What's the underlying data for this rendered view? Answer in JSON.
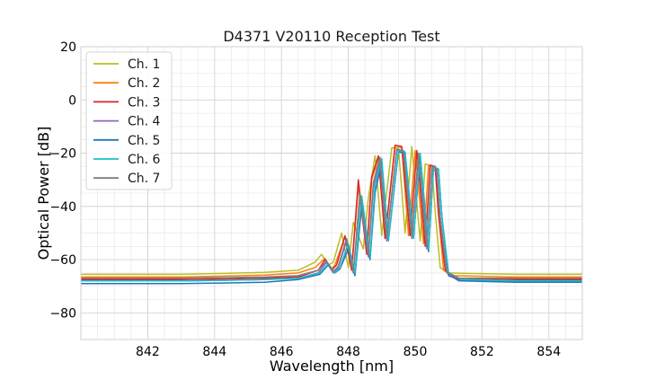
{
  "chart_data": {
    "type": "line",
    "title": "D4371 V20110 Reception Test",
    "xlabel": "Wavelength [nm]",
    "ylabel": "Optical Power [dB]",
    "xlim": [
      840,
      855
    ],
    "ylim": [
      -90,
      20
    ],
    "xticks": [
      842,
      844,
      846,
      848,
      850,
      852,
      854
    ],
    "yticks": [
      20,
      0,
      -20,
      -40,
      -60,
      -80
    ],
    "grid": true,
    "legend_position": "top-left",
    "series": [
      {
        "name": "Ch. 1",
        "color": "#bcbd22",
        "x": [
          840,
          843,
          845.5,
          846.5,
          847.0,
          847.2,
          847.4,
          847.55,
          847.8,
          848.0,
          848.15,
          848.45,
          848.6,
          848.8,
          849.0,
          849.3,
          849.5,
          849.7,
          849.9,
          850.15,
          850.3,
          850.5,
          850.6,
          850.75,
          851.0,
          853,
          855
        ],
        "y": [
          -65.5,
          -65.5,
          -64.8,
          -64,
          -61,
          -58,
          -62,
          -61,
          -50,
          -63,
          -46,
          -56,
          -37,
          -21,
          -51,
          -18,
          -18,
          -50,
          -17.5,
          -53,
          -24,
          -25,
          -42,
          -63,
          -65,
          -65.5,
          -65.5
        ]
      },
      {
        "name": "Ch. 2",
        "color": "#ff7f0e",
        "x": [
          840,
          843,
          845.5,
          846.5,
          847.0,
          847.3,
          847.5,
          847.6,
          847.9,
          848.1,
          848.3,
          848.55,
          848.7,
          848.9,
          849.1,
          849.4,
          849.6,
          849.8,
          850.0,
          850.25,
          850.4,
          850.6,
          850.7,
          850.85,
          851.1,
          853,
          855
        ],
        "y": [
          -66.5,
          -66.5,
          -65.8,
          -65,
          -63,
          -59.5,
          -63.5,
          -62,
          -51.5,
          -64,
          -33,
          -57,
          -30,
          -22,
          -52,
          -17,
          -18,
          -51,
          -19,
          -54,
          -24.5,
          -25,
          -43,
          -64,
          -66,
          -66.5,
          -66.5
        ]
      },
      {
        "name": "Ch. 3",
        "color": "#d62728",
        "x": [
          840,
          843,
          845.5,
          846.5,
          847.1,
          847.3,
          847.5,
          847.65,
          847.9,
          848.1,
          848.3,
          848.55,
          848.7,
          848.9,
          849.1,
          849.4,
          849.6,
          849.85,
          850.05,
          850.3,
          850.45,
          850.6,
          850.7,
          850.9,
          851.2,
          853,
          855
        ],
        "y": [
          -67.5,
          -67.5,
          -67,
          -66.5,
          -64,
          -60,
          -64,
          -62,
          -51,
          -64,
          -30,
          -58,
          -29,
          -21,
          -52,
          -17,
          -17.5,
          -51,
          -19,
          -55,
          -24.5,
          -25,
          -43,
          -64,
          -67,
          -67.5,
          -67.5
        ]
      },
      {
        "name": "Ch. 4",
        "color": "#9467bd",
        "x": [
          840,
          843,
          845.5,
          846.5,
          847.1,
          847.35,
          847.55,
          847.7,
          847.95,
          848.15,
          848.35,
          848.6,
          848.75,
          848.95,
          849.15,
          849.45,
          849.65,
          849.9,
          850.1,
          850.35,
          850.5,
          850.65,
          850.75,
          850.95,
          851.3,
          853,
          855
        ],
        "y": [
          -68,
          -68,
          -67.5,
          -67,
          -65,
          -61,
          -65,
          -63,
          -53,
          -65,
          -37,
          -59,
          -33,
          -23,
          -53,
          -19,
          -19.5,
          -52,
          -21,
          -56,
          -26,
          -27,
          -45,
          -65,
          -68,
          -68,
          -68
        ]
      },
      {
        "name": "Ch. 5",
        "color": "#1f77b4",
        "x": [
          840,
          843,
          845.5,
          846.5,
          847.15,
          847.4,
          847.6,
          847.75,
          848.0,
          848.2,
          848.4,
          848.65,
          848.8,
          849.0,
          849.2,
          849.5,
          849.7,
          849.95,
          850.15,
          850.4,
          850.55,
          850.7,
          850.8,
          851.0,
          851.4,
          853,
          855
        ],
        "y": [
          -69,
          -69,
          -68.5,
          -67.5,
          -65.5,
          -62,
          -65,
          -63.5,
          -56,
          -66,
          -40,
          -60,
          -35,
          -23,
          -53,
          -19.5,
          -20,
          -52,
          -21,
          -57,
          -25,
          -26,
          -44,
          -66,
          -68,
          -68.5,
          -68.5
        ]
      },
      {
        "name": "Ch. 6",
        "color": "#17becf",
        "x": [
          840,
          843,
          845.5,
          846.5,
          847.15,
          847.4,
          847.6,
          847.75,
          848.0,
          848.2,
          848.4,
          848.65,
          848.8,
          849.0,
          849.2,
          849.5,
          849.7,
          849.95,
          850.15,
          850.4,
          850.55,
          850.7,
          850.8,
          851.0,
          851.4,
          853,
          855
        ],
        "y": [
          -68,
          -68,
          -67.5,
          -67,
          -65,
          -61.5,
          -65,
          -63,
          -54,
          -65,
          -36,
          -59,
          -32,
          -22,
          -53,
          -19,
          -19.5,
          -52,
          -20,
          -56,
          -25,
          -26,
          -44,
          -65,
          -67.5,
          -68,
          -68
        ]
      },
      {
        "name": "Ch. 7",
        "color": "#7f7f7f",
        "x": [
          840,
          843,
          845.5,
          846.5,
          847.1,
          847.35,
          847.55,
          847.7,
          847.95,
          848.15,
          848.35,
          848.6,
          848.75,
          848.95,
          849.15,
          849.45,
          849.65,
          849.9,
          850.1,
          850.35,
          850.5,
          850.65,
          850.75,
          850.95,
          851.3,
          853,
          855
        ],
        "y": [
          -67,
          -67,
          -66.5,
          -66,
          -64,
          -60.5,
          -64.5,
          -62.5,
          -52,
          -64.5,
          -35,
          -58,
          -31,
          -21.5,
          -52,
          -18.5,
          -19,
          -51,
          -20,
          -55,
          -25,
          -26,
          -44,
          -64.5,
          -67,
          -67,
          -67
        ]
      }
    ]
  }
}
